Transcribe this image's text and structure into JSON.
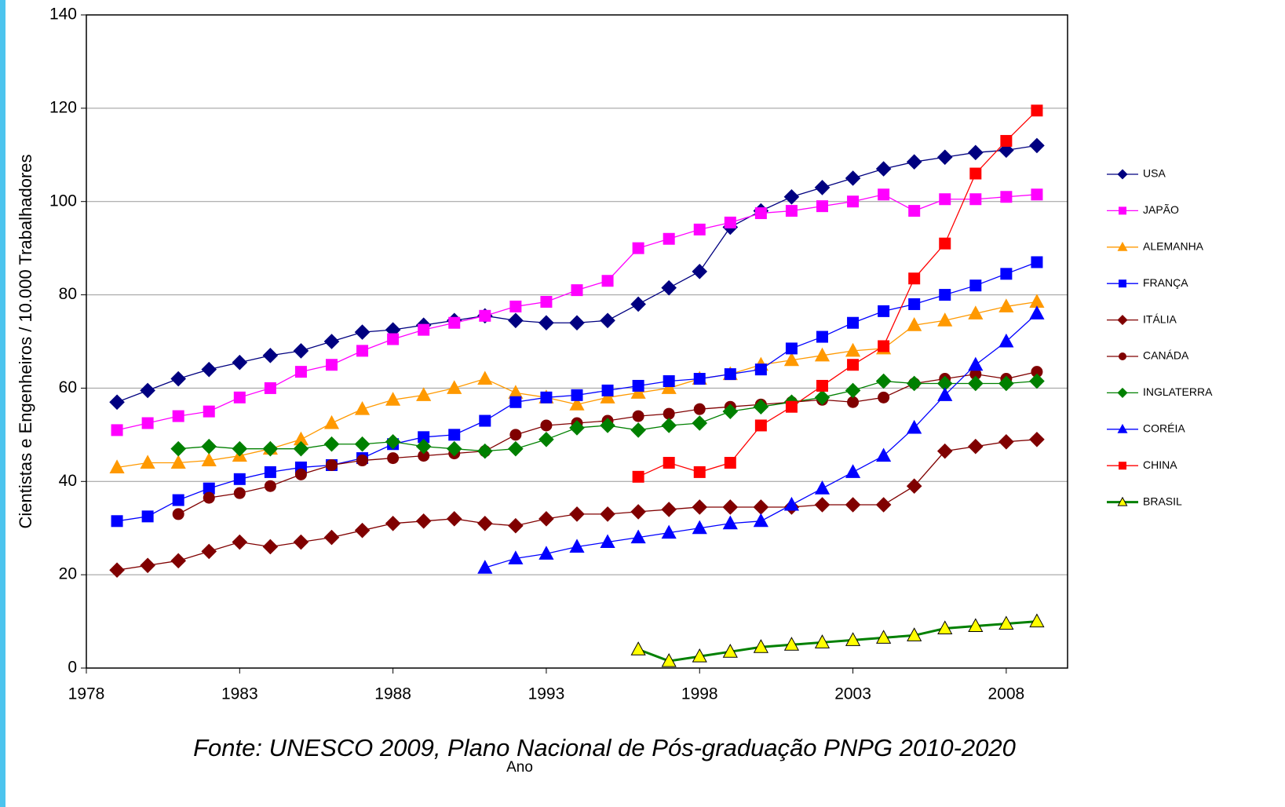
{
  "chart_data": {
    "type": "line",
    "xlabel": "Ano",
    "ylabel": "Cientistas e Engenheiros / 10.000 Trabalhadores",
    "annotation": "Fonte: UNESCO 2009, Plano Nacional de Pós-graduação PNPG 2010-2020",
    "x": [
      1979,
      1980,
      1981,
      1982,
      1983,
      1984,
      1985,
      1986,
      1987,
      1988,
      1989,
      1990,
      1991,
      1992,
      1993,
      1994,
      1995,
      1996,
      1997,
      1998,
      1999,
      2000,
      2001,
      2002,
      2003,
      2004,
      2005,
      2006,
      2007,
      2008,
      2009
    ],
    "xlim": [
      1978,
      2010
    ],
    "xticks": [
      1978,
      1983,
      1988,
      1993,
      1998,
      2003,
      2008
    ],
    "ylim": [
      0,
      140
    ],
    "yticks": [
      0,
      20,
      40,
      60,
      80,
      100,
      120,
      140
    ],
    "grid": true,
    "legend": "right",
    "series": [
      {
        "name": "USA",
        "color": "#000080",
        "marker": "diamond",
        "values": [
          57,
          59.5,
          62,
          64,
          65.5,
          67,
          68,
          70,
          72,
          72.5,
          73.5,
          74.5,
          75.5,
          74.5,
          74,
          74,
          74.5,
          78,
          81.5,
          85,
          94.5,
          98,
          101,
          103,
          105,
          107,
          108.5,
          109.5,
          110.5,
          111,
          112
        ]
      },
      {
        "name": "JAPÃO",
        "color": "#ff00ff",
        "marker": "square",
        "values": [
          51,
          52.5,
          54,
          55,
          58,
          60,
          63.5,
          65,
          68,
          70.5,
          72.5,
          74,
          75.5,
          77.5,
          78.5,
          81,
          83,
          90,
          92,
          94,
          95.5,
          97.5,
          98,
          99,
          100,
          101.5,
          98,
          100.5,
          100.5,
          101,
          101.5
        ]
      },
      {
        "name": "ALEMANHA",
        "color": "#ff9900",
        "marker": "triangle",
        "values": [
          43,
          44,
          44,
          44.5,
          45.5,
          47,
          49,
          52.5,
          55.5,
          57.5,
          58.5,
          60,
          62,
          59,
          58,
          56.5,
          58,
          59,
          60,
          62,
          63,
          65,
          66,
          67,
          68,
          68.5,
          73.5,
          74.5,
          76,
          77.5,
          78.5
        ]
      },
      {
        "name": "FRANÇA",
        "color": "#0000ff",
        "marker": "square",
        "values": [
          31.5,
          32.5,
          36,
          38.5,
          40.5,
          42,
          43,
          43.5,
          45,
          48,
          49.5,
          50,
          53,
          57,
          58,
          58.5,
          59.5,
          60.5,
          61.5,
          62,
          63,
          64,
          68.5,
          71,
          74,
          76.5,
          78,
          80,
          82,
          84.5,
          87
        ]
      },
      {
        "name": "ITÁLIA",
        "color": "#800000",
        "marker": "diamond",
        "values": [
          21,
          22,
          23,
          25,
          27,
          26,
          27,
          28,
          29.5,
          31,
          31.5,
          32,
          31,
          30.5,
          32,
          33,
          33,
          33.5,
          34,
          34.5,
          34.5,
          34.5,
          34.5,
          35,
          35,
          35,
          39,
          46.5,
          47.5,
          48.5,
          49
        ]
      },
      {
        "name": "CANÁDA",
        "color": "#800000",
        "marker": "circle",
        "values": [
          null,
          null,
          33,
          36.5,
          37.5,
          39,
          41.5,
          43.5,
          44.5,
          45,
          45.5,
          46,
          46.5,
          50,
          52,
          52.5,
          53,
          54,
          54.5,
          55.5,
          56,
          56.5,
          57,
          57.5,
          57,
          58,
          61,
          62,
          63,
          62,
          63.5
        ]
      },
      {
        "name": "INGLATERRA",
        "color": "#008000",
        "marker": "diamond",
        "values": [
          null,
          null,
          47,
          47.5,
          47,
          47,
          47,
          48,
          48,
          48.5,
          47.5,
          47,
          46.5,
          47,
          49,
          51.5,
          52,
          51,
          52,
          52.5,
          55,
          56,
          57,
          58,
          59.5,
          61.5,
          61,
          61,
          61,
          61,
          61.5
        ]
      },
      {
        "name": "CORÉIA",
        "color": "#0000ff",
        "marker": "triangle",
        "values": [
          null,
          null,
          null,
          null,
          null,
          null,
          null,
          null,
          null,
          null,
          null,
          null,
          21.5,
          23.5,
          24.5,
          26,
          27,
          28,
          29,
          30,
          31,
          31.5,
          35,
          38.5,
          42,
          45.5,
          51.5,
          58.5,
          65,
          70,
          76
        ]
      },
      {
        "name": "CHINA",
        "color": "#ff0000",
        "marker": "square",
        "values": [
          null,
          null,
          null,
          null,
          null,
          null,
          null,
          null,
          null,
          null,
          null,
          null,
          null,
          null,
          null,
          null,
          null,
          41,
          44,
          42,
          44,
          52,
          56,
          60.5,
          65,
          69,
          83.5,
          91,
          106,
          113,
          119.5
        ]
      },
      {
        "name": "BRASIL",
        "color": "#008000",
        "marker": "triangle",
        "marker_fill": "#ffff00",
        "line_width": 3,
        "values": [
          null,
          null,
          null,
          null,
          null,
          null,
          null,
          null,
          null,
          null,
          null,
          null,
          null,
          null,
          null,
          null,
          null,
          4,
          1.5,
          2.5,
          3.5,
          4.5,
          5,
          5.5,
          6,
          6.5,
          7,
          8.5,
          9,
          9.5,
          10
        ]
      }
    ]
  }
}
